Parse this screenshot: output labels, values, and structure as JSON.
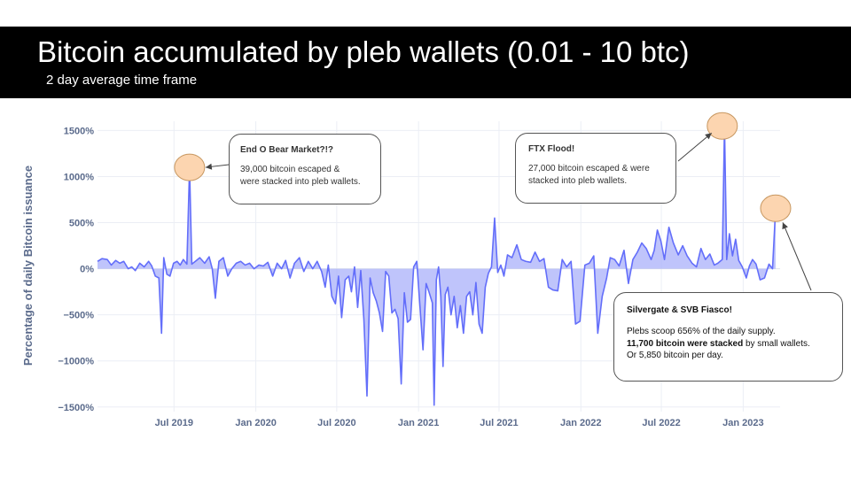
{
  "header": {
    "title": "Bitcoin accumulated by pleb wallets (0.01 - 10 btc)",
    "subtitle": "2 day average time frame"
  },
  "annotations": [
    {
      "title": "End O Bear Market?!?",
      "line1": "39,000 bitcoin escaped &",
      "line2": "were stacked into pleb wallets."
    },
    {
      "title": "FTX Flood!",
      "line1": "27,000 bitcoin escaped & were",
      "line2": "stacked into pleb wallets."
    },
    {
      "title": "Silvergate & SVB Fiasco!",
      "line1": "Plebs scoop 656% of the daily supply.",
      "line2_bold": "11,700 bitcoin were stacked",
      "line2_rest": " by small wallets.",
      "line3": "Or 5,850 bitcoin per day."
    }
  ],
  "colors": {
    "line": "#636efa",
    "fill": "#aab0fa",
    "highlight": "#fcd5b0",
    "axis_text": "#5b6b8c"
  },
  "chart_data": {
    "type": "area",
    "ylabel": "Percentage of daily Bitcoin issuance",
    "xlabel": "",
    "ylim": [
      -1550,
      1600
    ],
    "xlim": [
      "2019-01-10",
      "2023-03-25"
    ],
    "y_ticks": [
      1500,
      1000,
      500,
      0,
      -500,
      -1000,
      -1500
    ],
    "y_tick_labels": [
      "1500%",
      "1000%",
      "500%",
      "0%",
      "−500%",
      "−1000%",
      "−1500%"
    ],
    "x_ticks": [
      "2019-07-01",
      "2020-01-01",
      "2020-07-01",
      "2021-01-01",
      "2021-07-01",
      "2022-01-01",
      "2022-07-01",
      "2023-01-01"
    ],
    "x_tick_labels": [
      "Jul 2019",
      "Jan 2020",
      "Jul 2020",
      "Jan 2021",
      "Jul 2021",
      "Jan 2022",
      "Jul 2022",
      "Jan 2023"
    ],
    "grid": true,
    "legend": "none",
    "highlights": [
      {
        "x": "2019-08-05",
        "y": 1100
      },
      {
        "x": "2022-11-15",
        "y": 1550
      },
      {
        "x": "2023-03-15",
        "y": 656
      }
    ],
    "series": [
      {
        "x": [
          "2019-01-10",
          "2019-01-20",
          "2019-02-01",
          "2019-02-10",
          "2019-02-20",
          "2019-03-01",
          "2019-03-10",
          "2019-03-20",
          "2019-03-28",
          "2019-04-05",
          "2019-04-15",
          "2019-04-25",
          "2019-05-05",
          "2019-05-12",
          "2019-05-20",
          "2019-05-28",
          "2019-06-03",
          "2019-06-08",
          "2019-06-15",
          "2019-06-22",
          "2019-06-30",
          "2019-07-08",
          "2019-07-15",
          "2019-07-22",
          "2019-07-30",
          "2019-08-05",
          "2019-08-10",
          "2019-08-18",
          "2019-08-28",
          "2019-09-08",
          "2019-09-18",
          "2019-09-25",
          "2019-10-02",
          "2019-10-10",
          "2019-10-20",
          "2019-10-30",
          "2019-11-08",
          "2019-11-18",
          "2019-11-28",
          "2019-12-08",
          "2019-12-18",
          "2019-12-28",
          "2020-01-08",
          "2020-01-18",
          "2020-01-28",
          "2020-02-08",
          "2020-02-18",
          "2020-02-28",
          "2020-03-08",
          "2020-03-18",
          "2020-03-28",
          "2020-04-08",
          "2020-04-18",
          "2020-04-28",
          "2020-05-08",
          "2020-05-18",
          "2020-05-28",
          "2020-06-05",
          "2020-06-12",
          "2020-06-20",
          "2020-06-28",
          "2020-07-05",
          "2020-07-12",
          "2020-07-20",
          "2020-07-28",
          "2020-08-03",
          "2020-08-10",
          "2020-08-17",
          "2020-08-24",
          "2020-08-31",
          "2020-09-07",
          "2020-09-14",
          "2020-09-21",
          "2020-09-28",
          "2020-10-05",
          "2020-10-12",
          "2020-10-19",
          "2020-10-26",
          "2020-11-02",
          "2020-11-09",
          "2020-11-16",
          "2020-11-23",
          "2020-11-30",
          "2020-12-07",
          "2020-12-14",
          "2020-12-21",
          "2020-12-28",
          "2021-01-04",
          "2021-01-11",
          "2021-01-18",
          "2021-01-25",
          "2021-02-01",
          "2021-02-05",
          "2021-02-10",
          "2021-02-15",
          "2021-02-20",
          "2021-02-25",
          "2021-03-02",
          "2021-03-08",
          "2021-03-15",
          "2021-03-22",
          "2021-03-29",
          "2021-04-05",
          "2021-04-12",
          "2021-04-19",
          "2021-04-26",
          "2021-05-03",
          "2021-05-10",
          "2021-05-17",
          "2021-05-24",
          "2021-05-31",
          "2021-06-07",
          "2021-06-14",
          "2021-06-21",
          "2021-06-28",
          "2021-07-05",
          "2021-07-12",
          "2021-07-20",
          "2021-07-30",
          "2021-08-10",
          "2021-08-20",
          "2021-08-30",
          "2021-09-10",
          "2021-09-20",
          "2021-09-30",
          "2021-10-10",
          "2021-10-20",
          "2021-10-30",
          "2021-11-10",
          "2021-11-20",
          "2021-11-30",
          "2021-12-10",
          "2021-12-20",
          "2021-12-30",
          "2022-01-10",
          "2022-01-20",
          "2022-01-30",
          "2022-02-08",
          "2022-02-18",
          "2022-02-28",
          "2022-03-08",
          "2022-03-18",
          "2022-03-28",
          "2022-04-08",
          "2022-04-18",
          "2022-04-28",
          "2022-05-08",
          "2022-05-18",
          "2022-05-28",
          "2022-06-08",
          "2022-06-15",
          "2022-06-22",
          "2022-06-30",
          "2022-07-08",
          "2022-07-18",
          "2022-07-28",
          "2022-08-08",
          "2022-08-18",
          "2022-08-28",
          "2022-09-08",
          "2022-09-18",
          "2022-09-28",
          "2022-10-08",
          "2022-10-18",
          "2022-10-28",
          "2022-11-05",
          "2022-11-10",
          "2022-11-15",
          "2022-11-20",
          "2022-11-25",
          "2022-12-01",
          "2022-12-08",
          "2022-12-15",
          "2022-12-22",
          "2022-12-30",
          "2023-01-08",
          "2023-01-15",
          "2023-01-22",
          "2023-01-30",
          "2023-02-08",
          "2023-02-18",
          "2023-02-28",
          "2023-03-08",
          "2023-03-15"
        ],
        "y": [
          80,
          110,
          100,
          40,
          90,
          60,
          80,
          0,
          20,
          -20,
          60,
          20,
          80,
          30,
          -80,
          -100,
          -700,
          120,
          -60,
          -80,
          60,
          80,
          40,
          100,
          50,
          1100,
          50,
          80,
          120,
          60,
          130,
          0,
          -320,
          80,
          120,
          -80,
          0,
          60,
          80,
          40,
          60,
          0,
          40,
          30,
          70,
          -80,
          60,
          0,
          90,
          -100,
          60,
          120,
          -30,
          80,
          0,
          80,
          -30,
          -200,
          40,
          -300,
          -380,
          -80,
          -530,
          -120,
          -80,
          -250,
          20,
          -420,
          -20,
          -550,
          -1380,
          -100,
          -260,
          -350,
          -480,
          -680,
          -30,
          -80,
          -480,
          -440,
          -540,
          -1250,
          -260,
          -580,
          -550,
          20,
          80,
          -400,
          -880,
          -160,
          -260,
          -370,
          -1480,
          -120,
          20,
          -300,
          -1060,
          -280,
          -200,
          -500,
          -300,
          -640,
          -400,
          -700,
          -300,
          -250,
          -500,
          -150,
          -600,
          -700,
          -200,
          -50,
          20,
          550,
          -40,
          40,
          -80,
          150,
          120,
          260,
          100,
          80,
          70,
          180,
          80,
          110,
          -200,
          -230,
          -240,
          100,
          20,
          80,
          -600,
          -570,
          40,
          60,
          140,
          -700,
          -300,
          -100,
          120,
          100,
          30,
          200,
          -160,
          100,
          180,
          280,
          220,
          100,
          200,
          420,
          300,
          100,
          450,
          280,
          150,
          250,
          140,
          60,
          20,
          220,
          100,
          160,
          40,
          60,
          80,
          100,
          1550,
          100,
          380,
          140,
          320,
          90,
          20,
          -100,
          30,
          100,
          50,
          -120,
          -100,
          50,
          0,
          656
        ]
      }
    ]
  }
}
